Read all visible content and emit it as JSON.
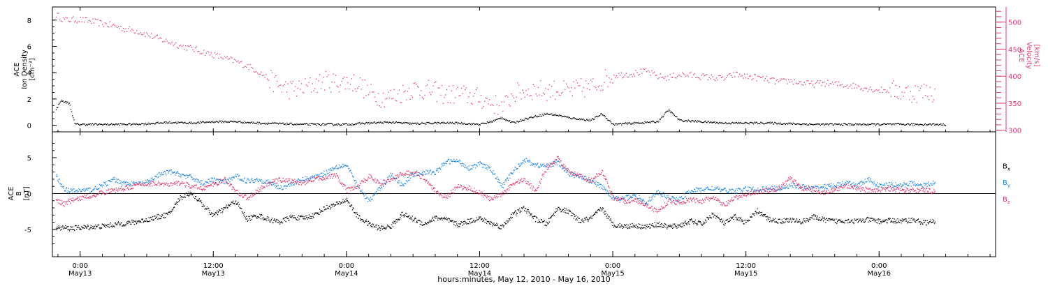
{
  "colors": {
    "density": "#000000",
    "velocity": "#e0356a",
    "bx": "#000000",
    "by": "#1f88e5",
    "bz": "#e0356a",
    "axis": "#000000"
  },
  "chart_data": [
    {
      "type": "scatter",
      "ylabel": [
        "ACE",
        "Ion Density",
        "[cm⁻³]"
      ],
      "yticks": [
        "0",
        "2",
        "4",
        "6",
        "8"
      ],
      "ylim": [
        -0.5,
        9.0
      ],
      "xlim_hours": [
        -2.5,
        82.5
      ],
      "y2label": [
        "ACE",
        "Velocity",
        "[km/s]"
      ],
      "y2ticks": [
        "300",
        "350",
        "400",
        "450",
        "500"
      ],
      "y2lim": [
        297,
        528
      ],
      "series": [
        {
          "name": "",
          "axis": "left",
          "color": "#000000",
          "x_hours": [
            -2.2,
            -1.8,
            -1.4,
            -1.0,
            -0.5,
            0,
            2,
            4,
            6,
            8,
            10,
            12,
            14,
            16,
            18,
            20,
            22,
            24,
            26,
            28,
            30,
            32,
            34,
            36,
            37,
            38,
            39,
            40,
            41,
            42,
            43,
            44,
            45,
            46,
            47,
            48,
            50,
            52,
            53,
            54,
            56,
            58,
            60,
            62,
            64,
            66,
            68,
            70,
            72,
            74,
            76,
            78
          ],
          "values": [
            1.2,
            1.9,
            1.8,
            1.7,
            0.1,
            0.1,
            0.1,
            0.1,
            0.15,
            0.25,
            0.2,
            0.3,
            0.3,
            0.2,
            0.15,
            0.1,
            0.1,
            0.1,
            0.2,
            0.25,
            0.15,
            0.2,
            0.2,
            0.1,
            0.3,
            0.6,
            0.2,
            0.5,
            0.7,
            0.9,
            0.8,
            0.6,
            0.5,
            0.4,
            0.9,
            0.1,
            0.2,
            0.3,
            1.2,
            0.4,
            0.3,
            0.2,
            0.2,
            0.2,
            0.15,
            0.1,
            0.1,
            0.1,
            0.1,
            0.1,
            0.1,
            0.1
          ]
        },
        {
          "name": "",
          "axis": "right",
          "color": "#e0356a",
          "x_hours": [
            -2.2,
            -1.5,
            -1.0,
            0,
            1,
            2,
            3,
            4,
            5,
            6,
            7,
            8,
            9,
            10,
            11,
            12,
            13,
            14,
            15,
            16,
            17,
            18,
            19,
            20,
            21,
            22,
            23,
            24,
            25,
            26,
            27,
            28,
            29,
            30,
            31,
            32,
            33,
            34,
            35,
            36,
            37,
            38,
            39,
            40,
            41,
            42,
            43,
            44,
            45,
            46,
            47,
            48,
            49,
            50,
            51,
            52,
            53,
            54,
            55,
            56,
            57,
            58,
            59,
            60,
            61,
            62,
            63,
            64,
            65,
            66,
            67,
            68,
            69,
            70,
            71,
            72,
            73,
            74,
            75,
            76,
            77
          ],
          "values": [
            515,
            505,
            505,
            505,
            502,
            498,
            494,
            488,
            485,
            478,
            470,
            464,
            457,
            452,
            446,
            440,
            434,
            428,
            420,
            410,
            395,
            382,
            376,
            378,
            385,
            392,
            389,
            390,
            388,
            370,
            362,
            362,
            370,
            378,
            376,
            372,
            366,
            368,
            364,
            360,
            352,
            340,
            368,
            373,
            376,
            374,
            376,
            372,
            378,
            380,
            392,
            402,
            404,
            406,
            410,
            400,
            398,
            404,
            402,
            400,
            398,
            396,
            404,
            400,
            398,
            394,
            390,
            392,
            388,
            386,
            388,
            386,
            384,
            382,
            378,
            375,
            375,
            372,
            370,
            372,
            370
          ]
        }
      ]
    },
    {
      "type": "scatter",
      "ylabel": [
        "ACE",
        "B",
        "[nT]"
      ],
      "yticks": [
        "-5",
        "0",
        "5"
      ],
      "ylim": [
        -8.8,
        8.6
      ],
      "xlim_hours": [
        -2.5,
        82.5
      ],
      "xticks": [
        {
          "hours": 0,
          "time": "0:00",
          "date": "May13"
        },
        {
          "hours": 12,
          "time": "12:00",
          "date": "May13"
        },
        {
          "hours": 24,
          "time": "0:00",
          "date": "May14"
        },
        {
          "hours": 36,
          "time": "12:00",
          "date": "May14"
        },
        {
          "hours": 48,
          "time": "0:00",
          "date": "May15"
        },
        {
          "hours": 60,
          "time": "12:00",
          "date": "May15"
        },
        {
          "hours": 72,
          "time": "0:00",
          "date": "May16"
        }
      ],
      "xlabel": "hours:minutes, May 12, 2010 - May 16, 2010",
      "legend": [
        {
          "label": "B",
          "sub": "x",
          "color": "#000000"
        },
        {
          "label": "B",
          "sub": "y",
          "color": "#1f88e5"
        },
        {
          "label": "B",
          "sub": "z",
          "color": "#e0356a"
        }
      ],
      "series": [
        {
          "name": "Bx",
          "color": "#000000",
          "x_hours": [
            -2.2,
            -1.5,
            -1.0,
            0,
            1,
            2,
            3,
            4,
            5,
            6,
            7,
            8,
            9,
            10,
            11,
            12,
            13,
            14,
            15,
            16,
            17,
            18,
            19,
            20,
            21,
            22,
            23,
            24,
            25,
            26,
            27,
            28,
            29,
            30,
            31,
            32,
            33,
            34,
            35,
            36,
            37,
            38,
            39,
            40,
            41,
            42,
            43,
            44,
            45,
            46,
            47,
            48,
            49,
            50,
            51,
            52,
            53,
            54,
            55,
            56,
            57,
            58,
            59,
            60,
            61,
            62,
            63,
            64,
            65,
            66,
            67,
            68,
            69,
            70,
            71,
            72,
            73,
            74,
            75,
            76,
            77
          ],
          "values": [
            -4.8,
            -4.7,
            -4.8,
            -4.7,
            -4.6,
            -4.5,
            -4.3,
            -4.1,
            -3.9,
            -3.6,
            -3.2,
            -2.8,
            -0.5,
            0.2,
            -1.5,
            -3.0,
            -2.0,
            -1.0,
            -3.5,
            -3.0,
            -3.6,
            -3.9,
            -3.2,
            -3.4,
            -3.0,
            -2.0,
            -1.5,
            -0.8,
            -3.2,
            -4.2,
            -4.8,
            -4.5,
            -2.8,
            -3.5,
            -4.2,
            -3.3,
            -3.6,
            -4.3,
            -3.8,
            -3.4,
            -4.1,
            -4.6,
            -2.8,
            -2.0,
            -3.5,
            -4.2,
            -2.0,
            -2.5,
            -3.8,
            -3.4,
            -2.0,
            -4.3,
            -4.5,
            -4.4,
            -4.6,
            -4.2,
            -4.6,
            -4.4,
            -3.8,
            -4.2,
            -2.8,
            -4.1,
            -3.2,
            -4.0,
            -2.4,
            -3.5,
            -3.8,
            -3.6,
            -3.9,
            -3.2,
            -3.6,
            -3.8,
            -3.7,
            -3.8,
            -3.6,
            -3.8,
            -3.7,
            -3.8,
            -3.6,
            -4.0,
            -3.9
          ]
        },
        {
          "name": "By",
          "color": "#1f88e5",
          "x_hours": [
            -2.2,
            -1.5,
            -1.0,
            0,
            1,
            2,
            3,
            4,
            5,
            6,
            7,
            8,
            9,
            10,
            11,
            12,
            13,
            14,
            15,
            16,
            17,
            18,
            19,
            20,
            21,
            22,
            23,
            24,
            25,
            26,
            27,
            28,
            29,
            30,
            31,
            32,
            33,
            34,
            35,
            36,
            37,
            38,
            39,
            40,
            41,
            42,
            43,
            44,
            45,
            46,
            47,
            48,
            49,
            50,
            51,
            52,
            53,
            54,
            55,
            56,
            57,
            58,
            59,
            60,
            61,
            62,
            63,
            64,
            65,
            66,
            67,
            68,
            69,
            70,
            71,
            72,
            73,
            74,
            75,
            76,
            77
          ],
          "values": [
            2.5,
            0.8,
            0.4,
            0.5,
            0.6,
            1.2,
            2.0,
            1.5,
            1.4,
            1.6,
            2.6,
            3.1,
            2.7,
            2.3,
            1.5,
            2.0,
            1.6,
            2.5,
            1.8,
            2.0,
            1.6,
            0.8,
            1.4,
            2.0,
            2.3,
            2.9,
            3.8,
            4.0,
            1.0,
            -1.0,
            0.8,
            2.7,
            1.2,
            2.8,
            3.0,
            3.0,
            4.5,
            4.6,
            3.6,
            4.2,
            3.4,
            1.0,
            3.2,
            4.8,
            4.0,
            3.9,
            4.4,
            2.8,
            2.5,
            1.8,
            1.0,
            -0.5,
            -0.6,
            -0.2,
            -1.2,
            0.2,
            -0.5,
            -0.8,
            0.5,
            0.6,
            0.8,
            0.5,
            0.4,
            0.7,
            0.6,
            0.8,
            0.7,
            1.2,
            1.0,
            0.8,
            1.0,
            1.2,
            1.5,
            1.2,
            2.0,
            1.1,
            1.3,
            1.2,
            1.5,
            1.2,
            1.5
          ]
        },
        {
          "name": "Bz",
          "color": "#e0356a",
          "x_hours": [
            -2.2,
            -1.5,
            -1.0,
            0,
            1,
            2,
            3,
            4,
            5,
            6,
            7,
            8,
            9,
            10,
            11,
            12,
            13,
            14,
            15,
            16,
            17,
            18,
            19,
            20,
            21,
            22,
            23,
            24,
            25,
            26,
            27,
            28,
            29,
            30,
            31,
            32,
            33,
            34,
            35,
            36,
            37,
            38,
            39,
            40,
            41,
            42,
            43,
            44,
            45,
            46,
            47,
            48,
            49,
            50,
            51,
            52,
            53,
            54,
            55,
            56,
            57,
            58,
            59,
            60,
            61,
            62,
            63,
            64,
            65,
            66,
            67,
            68,
            69,
            70,
            71,
            72,
            73,
            74,
            75,
            76,
            77
          ],
          "values": [
            -0.8,
            -1.4,
            -1.0,
            -0.6,
            -0.2,
            0.2,
            0.5,
            0.8,
            1.2,
            1.4,
            1.5,
            1.2,
            1.6,
            1.0,
            0.8,
            1.3,
            2.0,
            0.4,
            -0.6,
            0.5,
            1.5,
            2.0,
            1.8,
            1.5,
            2.1,
            2.3,
            2.6,
            0.5,
            1.0,
            2.5,
            1.4,
            2.0,
            2.8,
            3.0,
            2.2,
            0.4,
            -0.5,
            1.0,
            0.8,
            0.2,
            -0.8,
            0.0,
            1.5,
            2.0,
            0.5,
            3.5,
            5.0,
            3.0,
            2.5,
            1.8,
            3.2,
            -0.5,
            -1.0,
            -0.8,
            -1.5,
            -2.5,
            -1.0,
            -1.2,
            -0.8,
            -1.0,
            -0.5,
            -1.6,
            -0.6,
            0.0,
            0.3,
            0.5,
            0.8,
            2.2,
            0.8,
            0.6,
            0.2,
            0.5,
            1.2,
            0.8,
            0.5,
            0.6,
            0.7,
            0.5,
            0.5,
            0.6,
            0.3
          ]
        }
      ]
    }
  ]
}
